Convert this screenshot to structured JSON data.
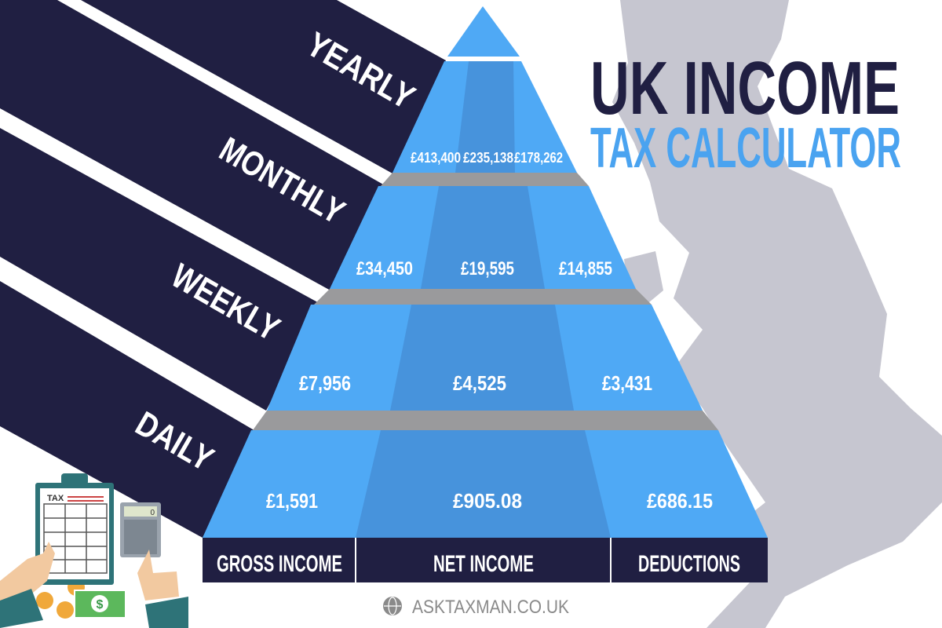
{
  "title": {
    "line1": "UK INCOME",
    "line2": "TAX CALCULATOR"
  },
  "colors": {
    "navy": "#201f42",
    "blue": "#4fa9f5",
    "blue_dark": "#4793dc",
    "gray_band": "#9a9a9c",
    "map": "#c6c6d0",
    "title_blue": "#4aa3f0"
  },
  "periods": [
    {
      "label": "YEARLY",
      "gross": "£413,400",
      "net": "£235,138",
      "deductions": "£178,262"
    },
    {
      "label": "MONTHLY",
      "gross": "£34,450",
      "net": "£19,595",
      "deductions": "£14,855"
    },
    {
      "label": "WEEKLY",
      "gross": "£7,956",
      "net": "£4,525",
      "deductions": "£3,431"
    },
    {
      "label": "DAILY",
      "gross": "£1,591",
      "net": "£905.08",
      "deductions": "£686.15"
    }
  ],
  "columns": [
    "GROSS INCOME",
    "NET INCOME",
    "DEDUCTIONS"
  ],
  "illustration": {
    "clipboard_label": "TAX",
    "calculator_display": "0"
  },
  "footer": {
    "website": "ASKTAXMAN.CO.UK",
    "icon": "globe-icon"
  }
}
